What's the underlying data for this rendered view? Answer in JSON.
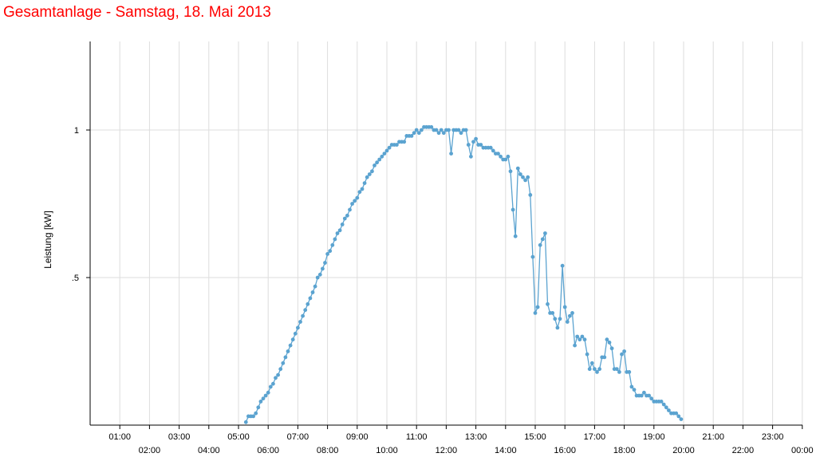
{
  "chart_data": {
    "type": "line",
    "title": "Gesamtanlage - Samstag, 18. Mai 2013",
    "xlabel": "",
    "ylabel": "Leistung [kW]",
    "xlim": [
      "00:00",
      "24:00"
    ],
    "ylim": [
      0,
      1.3
    ],
    "grid": true,
    "legend": "none",
    "colors": {
      "title": "#ff0000",
      "series": "#5ba3d0",
      "grid": "#dddddd",
      "axis": "#000000"
    },
    "y_ticks": [
      {
        "value": 0.5,
        "label": ".5"
      },
      {
        "value": 1,
        "label": "1"
      }
    ],
    "x_ticks": [
      {
        "value": "01:00",
        "label": "01:00"
      },
      {
        "value": "02:00",
        "label": "02:00"
      },
      {
        "value": "03:00",
        "label": "03:00"
      },
      {
        "value": "04:00",
        "label": "04:00"
      },
      {
        "value": "05:00",
        "label": "05:00"
      },
      {
        "value": "06:00",
        "label": "06:00"
      },
      {
        "value": "07:00",
        "label": "07:00"
      },
      {
        "value": "08:00",
        "label": "08:00"
      },
      {
        "value": "09:00",
        "label": "09:00"
      },
      {
        "value": "10:00",
        "label": "10:00"
      },
      {
        "value": "11:00",
        "label": "11:00"
      },
      {
        "value": "12:00",
        "label": "12:00"
      },
      {
        "value": "13:00",
        "label": "13:00"
      },
      {
        "value": "14:00",
        "label": "14:00"
      },
      {
        "value": "15:00",
        "label": "15:00"
      },
      {
        "value": "16:00",
        "label": "16:00"
      },
      {
        "value": "17:00",
        "label": "17:00"
      },
      {
        "value": "18:00",
        "label": "18:00"
      },
      {
        "value": "19:00",
        "label": "19:00"
      },
      {
        "value": "20:00",
        "label": "20:00"
      },
      {
        "value": "21:00",
        "label": "21:00"
      },
      {
        "value": "22:00",
        "label": "22:00"
      },
      {
        "value": "23:00",
        "label": "23:00"
      },
      {
        "value": "00:00",
        "label": "00:00"
      }
    ],
    "series": [
      {
        "points": [
          [
            "05:15",
            0.01
          ],
          [
            "05:20",
            0.03
          ],
          [
            "05:25",
            0.03
          ],
          [
            "05:30",
            0.03
          ],
          [
            "05:35",
            0.04
          ],
          [
            "05:40",
            0.06
          ],
          [
            "05:45",
            0.08
          ],
          [
            "05:50",
            0.09
          ],
          [
            "05:55",
            0.1
          ],
          [
            "06:00",
            0.11
          ],
          [
            "06:05",
            0.13
          ],
          [
            "06:10",
            0.14
          ],
          [
            "06:15",
            0.16
          ],
          [
            "06:20",
            0.17
          ],
          [
            "06:25",
            0.19
          ],
          [
            "06:30",
            0.21
          ],
          [
            "06:35",
            0.23
          ],
          [
            "06:40",
            0.25
          ],
          [
            "06:45",
            0.27
          ],
          [
            "06:50",
            0.29
          ],
          [
            "06:55",
            0.31
          ],
          [
            "07:00",
            0.33
          ],
          [
            "07:05",
            0.35
          ],
          [
            "07:10",
            0.37
          ],
          [
            "07:15",
            0.39
          ],
          [
            "07:20",
            0.41
          ],
          [
            "07:25",
            0.43
          ],
          [
            "07:30",
            0.45
          ],
          [
            "07:35",
            0.47
          ],
          [
            "07:40",
            0.5
          ],
          [
            "07:45",
            0.51
          ],
          [
            "07:50",
            0.53
          ],
          [
            "07:55",
            0.55
          ],
          [
            "08:00",
            0.58
          ],
          [
            "08:05",
            0.59
          ],
          [
            "08:10",
            0.61
          ],
          [
            "08:15",
            0.63
          ],
          [
            "08:20",
            0.65
          ],
          [
            "08:25",
            0.66
          ],
          [
            "08:30",
            0.68
          ],
          [
            "08:35",
            0.7
          ],
          [
            "08:40",
            0.71
          ],
          [
            "08:45",
            0.73
          ],
          [
            "08:50",
            0.75
          ],
          [
            "08:55",
            0.76
          ],
          [
            "09:00",
            0.77
          ],
          [
            "09:05",
            0.79
          ],
          [
            "09:10",
            0.8
          ],
          [
            "09:15",
            0.82
          ],
          [
            "09:20",
            0.84
          ],
          [
            "09:25",
            0.85
          ],
          [
            "09:30",
            0.86
          ],
          [
            "09:35",
            0.88
          ],
          [
            "09:40",
            0.89
          ],
          [
            "09:45",
            0.9
          ],
          [
            "09:50",
            0.91
          ],
          [
            "09:55",
            0.92
          ],
          [
            "10:00",
            0.93
          ],
          [
            "10:05",
            0.94
          ],
          [
            "10:10",
            0.95
          ],
          [
            "10:15",
            0.95
          ],
          [
            "10:20",
            0.95
          ],
          [
            "10:25",
            0.96
          ],
          [
            "10:30",
            0.96
          ],
          [
            "10:35",
            0.96
          ],
          [
            "10:40",
            0.98
          ],
          [
            "10:45",
            0.98
          ],
          [
            "10:50",
            0.98
          ],
          [
            "10:55",
            0.99
          ],
          [
            "11:00",
            1.0
          ],
          [
            "11:05",
            0.99
          ],
          [
            "11:10",
            1.0
          ],
          [
            "11:15",
            1.01
          ],
          [
            "11:20",
            1.01
          ],
          [
            "11:25",
            1.01
          ],
          [
            "11:30",
            1.01
          ],
          [
            "11:35",
            1.0
          ],
          [
            "11:40",
            1.0
          ],
          [
            "11:45",
            0.99
          ],
          [
            "11:50",
            1.0
          ],
          [
            "11:55",
            0.99
          ],
          [
            "12:00",
            1.0
          ],
          [
            "12:05",
            1.0
          ],
          [
            "12:10",
            0.92
          ],
          [
            "12:15",
            1.0
          ],
          [
            "12:20",
            1.0
          ],
          [
            "12:25",
            1.0
          ],
          [
            "12:30",
            0.99
          ],
          [
            "12:35",
            1.0
          ],
          [
            "12:40",
            1.0
          ],
          [
            "12:45",
            0.95
          ],
          [
            "12:50",
            0.91
          ],
          [
            "12:55",
            0.96
          ],
          [
            "13:00",
            0.97
          ],
          [
            "13:05",
            0.95
          ],
          [
            "13:10",
            0.95
          ],
          [
            "13:15",
            0.94
          ],
          [
            "13:20",
            0.94
          ],
          [
            "13:25",
            0.94
          ],
          [
            "13:30",
            0.94
          ],
          [
            "13:35",
            0.93
          ],
          [
            "13:40",
            0.92
          ],
          [
            "13:45",
            0.92
          ],
          [
            "13:50",
            0.91
          ],
          [
            "13:55",
            0.9
          ],
          [
            "14:00",
            0.9
          ],
          [
            "14:05",
            0.91
          ],
          [
            "14:10",
            0.86
          ],
          [
            "14:15",
            0.73
          ],
          [
            "14:20",
            0.64
          ],
          [
            "14:25",
            0.87
          ],
          [
            "14:30",
            0.85
          ],
          [
            "14:35",
            0.84
          ],
          [
            "14:40",
            0.83
          ],
          [
            "14:45",
            0.84
          ],
          [
            "14:50",
            0.78
          ],
          [
            "14:55",
            0.57
          ],
          [
            "15:00",
            0.38
          ],
          [
            "15:05",
            0.4
          ],
          [
            "15:10",
            0.61
          ],
          [
            "15:15",
            0.63
          ],
          [
            "15:20",
            0.65
          ],
          [
            "15:25",
            0.41
          ],
          [
            "15:30",
            0.38
          ],
          [
            "15:35",
            0.38
          ],
          [
            "15:40",
            0.36
          ],
          [
            "15:45",
            0.33
          ],
          [
            "15:50",
            0.36
          ],
          [
            "15:55",
            0.54
          ],
          [
            "16:00",
            0.4
          ],
          [
            "16:05",
            0.35
          ],
          [
            "16:10",
            0.37
          ],
          [
            "16:15",
            0.38
          ],
          [
            "16:20",
            0.27
          ],
          [
            "16:25",
            0.3
          ],
          [
            "16:30",
            0.29
          ],
          [
            "16:35",
            0.3
          ],
          [
            "16:40",
            0.29
          ],
          [
            "16:45",
            0.24
          ],
          [
            "16:50",
            0.19
          ],
          [
            "16:55",
            0.21
          ],
          [
            "17:00",
            0.19
          ],
          [
            "17:05",
            0.18
          ],
          [
            "17:10",
            0.19
          ],
          [
            "17:15",
            0.23
          ],
          [
            "17:20",
            0.23
          ],
          [
            "17:25",
            0.29
          ],
          [
            "17:30",
            0.28
          ],
          [
            "17:35",
            0.26
          ],
          [
            "17:40",
            0.19
          ],
          [
            "17:45",
            0.19
          ],
          [
            "17:50",
            0.18
          ],
          [
            "17:55",
            0.24
          ],
          [
            "18:00",
            0.25
          ],
          [
            "18:05",
            0.18
          ],
          [
            "18:10",
            0.18
          ],
          [
            "18:15",
            0.13
          ],
          [
            "18:20",
            0.12
          ],
          [
            "18:25",
            0.1
          ],
          [
            "18:30",
            0.1
          ],
          [
            "18:35",
            0.1
          ],
          [
            "18:40",
            0.11
          ],
          [
            "18:45",
            0.1
          ],
          [
            "18:50",
            0.1
          ],
          [
            "18:55",
            0.09
          ],
          [
            "19:00",
            0.08
          ],
          [
            "19:05",
            0.08
          ],
          [
            "19:10",
            0.08
          ],
          [
            "19:15",
            0.08
          ],
          [
            "19:20",
            0.07
          ],
          [
            "19:25",
            0.06
          ],
          [
            "19:30",
            0.05
          ],
          [
            "19:35",
            0.04
          ],
          [
            "19:40",
            0.04
          ],
          [
            "19:45",
            0.04
          ],
          [
            "19:50",
            0.03
          ],
          [
            "19:55",
            0.02
          ]
        ]
      }
    ]
  }
}
